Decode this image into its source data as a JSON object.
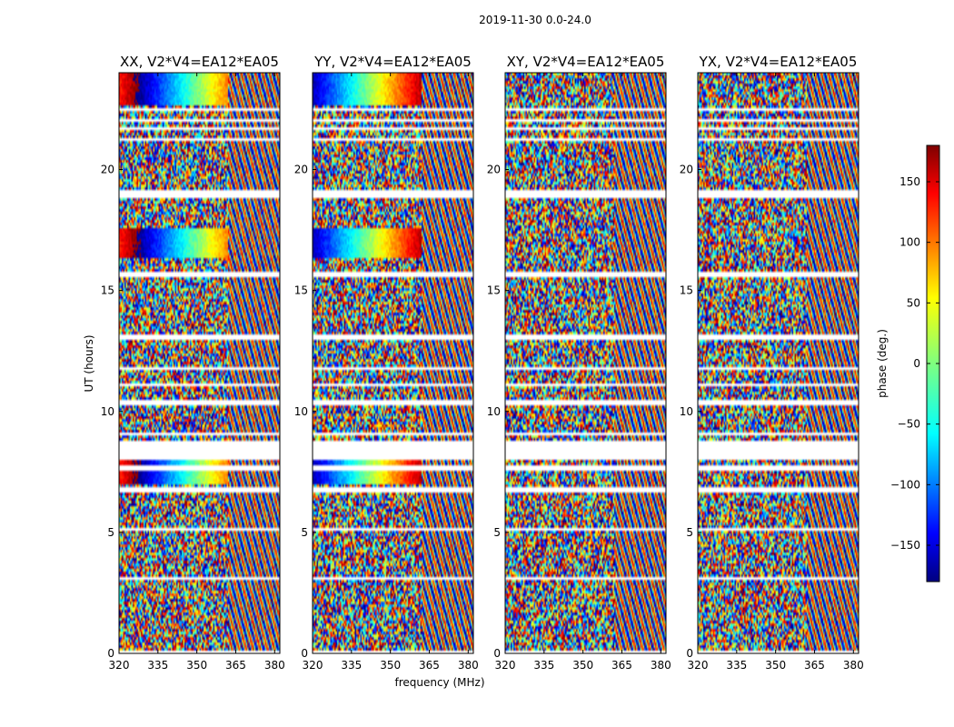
{
  "chart_data": {
    "type": "heatmap",
    "title": "2019-11-30 0.0-24.0",
    "xlabel": "frequency (MHz)",
    "ylabel": "UT (hours)",
    "xlim": [
      320,
      382
    ],
    "ylim": [
      0,
      24
    ],
    "xticks": [
      320,
      335,
      350,
      365,
      380
    ],
    "yticks": [
      0,
      5,
      10,
      15,
      20
    ],
    "panels": [
      {
        "title": "XX, V2*V4=EA12*EA05",
        "coherent": true
      },
      {
        "title": "YY, V2*V4=EA12*EA05",
        "coherent": true
      },
      {
        "title": "XY, V2*V4=EA12*EA05",
        "coherent": false
      },
      {
        "title": "YX, V2*V4=EA12*EA05",
        "coherent": false
      }
    ],
    "flagged_ut_hours": [
      [
        0.0,
        0.15
      ],
      [
        3.0,
        3.1
      ],
      [
        5.1,
        5.2
      ],
      [
        6.6,
        6.9
      ],
      [
        7.6,
        7.8
      ],
      [
        8.0,
        8.75
      ],
      [
        9.0,
        9.1
      ],
      [
        10.3,
        10.5
      ],
      [
        11.0,
        11.1
      ],
      [
        11.7,
        11.8
      ],
      [
        13.0,
        13.2
      ],
      [
        15.5,
        15.75
      ],
      [
        18.8,
        19.1
      ],
      [
        21.2,
        21.35
      ],
      [
        21.6,
        21.7
      ],
      [
        22.0,
        22.1
      ],
      [
        22.4,
        22.5
      ]
    ],
    "colorbar": {
      "label": "phase (deg.)",
      "range": [
        -180,
        180
      ],
      "ticks": [
        150,
        100,
        50,
        0,
        -50,
        -100,
        -150
      ],
      "tick_labels": [
        "150",
        "100",
        "50",
        "0",
        "−50",
        "−100",
        "−150"
      ],
      "colormap": "jet"
    }
  }
}
